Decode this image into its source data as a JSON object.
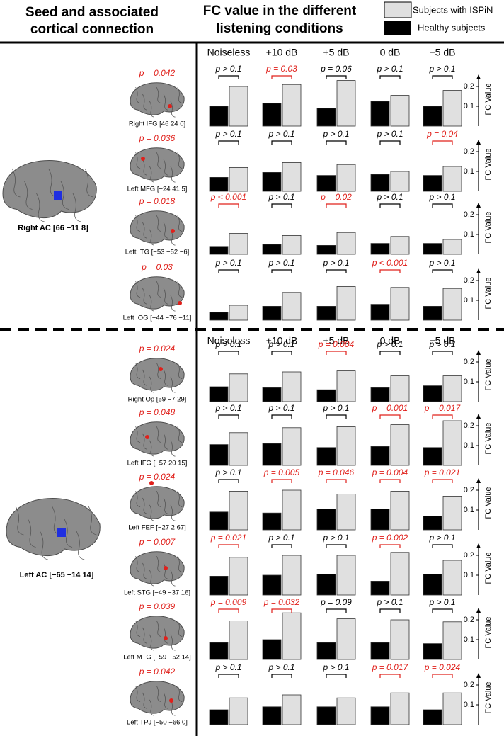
{
  "header": {
    "left_title": [
      "Seed and associated",
      "cortical connection"
    ],
    "right_title": [
      "FC value in the different",
      "listening conditions"
    ]
  },
  "sections": [
    {
      "seed": "Right AC [66 −11  8]",
      "conditions": [
        "Noiseless",
        "+10 dB",
        "+5 dB",
        "0 dB",
        "−5 dB"
      ]
    },
    {
      "seed": "Left AC [−65 −14 14]",
      "conditions": [
        "Noiseless",
        "+10 dB",
        "+5 dB",
        "0 dB",
        "−5 dB"
      ]
    }
  ],
  "significant_color": "#e0201b",
  "chart_data": [
    {
      "type": "bar",
      "region_p": "p = 0.042",
      "region": "Right IFG [46 24 0]",
      "ylabel": "FC Value",
      "ylim": [
        0,
        0.25
      ],
      "yticks": [
        0.1,
        0.2
      ],
      "series": [
        {
          "name": "Healthy subjects",
          "color": "#000000",
          "values": [
            0.1,
            0.115,
            0.09,
            0.125,
            0.1
          ]
        },
        {
          "name": "Subjects with ISPiN",
          "color": "#e0e0e0",
          "values": [
            0.2,
            0.21,
            0.23,
            0.155,
            0.18
          ]
        }
      ],
      "p_labels": [
        "p > 0.1",
        "p = 0.03",
        "p = 0.06",
        "p > 0.1",
        "p > 0.1"
      ],
      "p_significant": [
        false,
        true,
        false,
        false,
        false
      ]
    },
    {
      "type": "bar",
      "region_p": "p = 0.036",
      "region": "Left MFG [−24 41 5]",
      "ylabel": "FC Value",
      "ylim": [
        0,
        0.25
      ],
      "yticks": [
        0.1,
        0.2
      ],
      "series": [
        {
          "name": "Healthy subjects",
          "color": "#000000",
          "values": [
            0.07,
            0.095,
            0.08,
            0.085,
            0.08
          ]
        },
        {
          "name": "Subjects with ISPiN",
          "color": "#e0e0e0",
          "values": [
            0.12,
            0.145,
            0.135,
            0.1,
            0.125
          ]
        }
      ],
      "p_labels": [
        "p > 0.1",
        "p > 0.1",
        "p > 0.1",
        "p > 0.1",
        "p = 0.04"
      ],
      "p_significant": [
        false,
        false,
        false,
        false,
        true
      ]
    },
    {
      "type": "bar",
      "region_p": "p = 0.018",
      "region": "Left ITG [−53 −52 −6]",
      "ylabel": "FC Value",
      "ylim": [
        0,
        0.25
      ],
      "yticks": [
        0.1,
        0.2
      ],
      "series": [
        {
          "name": "Healthy subjects",
          "color": "#000000",
          "values": [
            0.04,
            0.05,
            0.045,
            0.055,
            0.055
          ]
        },
        {
          "name": "Subjects with ISPiN",
          "color": "#e0e0e0",
          "values": [
            0.105,
            0.095,
            0.11,
            0.09,
            0.075
          ]
        }
      ],
      "p_labels": [
        "p < 0.001",
        "p > 0.1",
        "p = 0.02",
        "p > 0.1",
        "p > 0.1"
      ],
      "p_significant": [
        true,
        false,
        true,
        false,
        false
      ]
    },
    {
      "type": "bar",
      "region_p": "p = 0.03",
      "region": "Left IOG [−44 −76 −11]",
      "ylabel": "FC Value",
      "ylim": [
        0,
        0.25
      ],
      "yticks": [
        0.1,
        0.2
      ],
      "series": [
        {
          "name": "Healthy subjects",
          "color": "#000000",
          "values": [
            0.04,
            0.07,
            0.07,
            0.08,
            0.07
          ]
        },
        {
          "name": "Subjects with ISPiN",
          "color": "#e0e0e0",
          "values": [
            0.075,
            0.14,
            0.17,
            0.165,
            0.16
          ]
        }
      ],
      "p_labels": [
        "p > 0.1",
        "p > 0.1",
        "p > 0.1",
        "p < 0.001",
        "p > 0.1"
      ],
      "p_significant": [
        false,
        false,
        false,
        true,
        false
      ]
    },
    {
      "type": "bar",
      "region_p": "p = 0.024",
      "region": "Right Op [59 −7 29]",
      "ylabel": "FC Value",
      "ylim": [
        0,
        0.25
      ],
      "yticks": [
        0.1,
        0.2
      ],
      "series": [
        {
          "name": "Healthy subjects",
          "color": "#000000",
          "values": [
            0.075,
            0.07,
            0.06,
            0.07,
            0.08
          ]
        },
        {
          "name": "Subjects with ISPiN",
          "color": "#e0e0e0",
          "values": [
            0.14,
            0.15,
            0.155,
            0.13,
            0.13
          ]
        }
      ],
      "p_labels": [
        "p > 0.1",
        "p > 0.1",
        "p = 0.004",
        "p > 0.1",
        "p > 0.1"
      ],
      "p_significant": [
        false,
        false,
        true,
        false,
        false
      ]
    },
    {
      "type": "bar",
      "region_p": "p = 0.048",
      "region": "Left IFG [−57 20 15]",
      "ylabel": "FC Value",
      "ylim": [
        0,
        0.25
      ],
      "yticks": [
        0.1,
        0.2
      ],
      "series": [
        {
          "name": "Healthy subjects",
          "color": "#000000",
          "values": [
            0.105,
            0.11,
            0.09,
            0.095,
            0.09
          ]
        },
        {
          "name": "Subjects with ISPiN",
          "color": "#e0e0e0",
          "values": [
            0.165,
            0.19,
            0.195,
            0.205,
            0.225
          ]
        }
      ],
      "p_labels": [
        "p > 0.1",
        "p > 0.1",
        "p > 0.1",
        "p = 0.001",
        "p = 0.017"
      ],
      "p_significant": [
        false,
        false,
        false,
        true,
        true
      ]
    },
    {
      "type": "bar",
      "region_p": "p = 0.024",
      "region": "Left FEF [−27 2 67]",
      "ylabel": "FC Value",
      "ylim": [
        0,
        0.25
      ],
      "yticks": [
        0.1,
        0.2
      ],
      "series": [
        {
          "name": "Healthy subjects",
          "color": "#000000",
          "values": [
            0.09,
            0.085,
            0.105,
            0.105,
            0.07
          ]
        },
        {
          "name": "Subjects with ISPiN",
          "color": "#e0e0e0",
          "values": [
            0.195,
            0.2,
            0.18,
            0.195,
            0.17
          ]
        }
      ],
      "p_labels": [
        "p > 0.1",
        "p = 0.005",
        "p = 0.046",
        "p = 0.004",
        "p = 0.021"
      ],
      "p_significant": [
        false,
        true,
        true,
        true,
        true
      ]
    },
    {
      "type": "bar",
      "region_p": "p = 0.007",
      "region": "Left STG [−49 −37 16]",
      "ylabel": "FC Value",
      "ylim": [
        0,
        0.25
      ],
      "yticks": [
        0.1,
        0.2
      ],
      "series": [
        {
          "name": "Healthy subjects",
          "color": "#000000",
          "values": [
            0.095,
            0.1,
            0.105,
            0.07,
            0.105
          ]
        },
        {
          "name": "Subjects with ISPiN",
          "color": "#e0e0e0",
          "values": [
            0.19,
            0.2,
            0.2,
            0.215,
            0.175
          ]
        }
      ],
      "p_labels": [
        "p = 0.021",
        "p > 0.1",
        "p > 0.1",
        "p = 0.002",
        "p > 0.1"
      ],
      "p_significant": [
        true,
        false,
        false,
        true,
        false
      ]
    },
    {
      "type": "bar",
      "region_p": "p = 0.039",
      "region": "Left MTG [−59 −52 14]",
      "ylabel": "FC Value",
      "ylim": [
        0,
        0.25
      ],
      "yticks": [
        0.1,
        0.2
      ],
      "series": [
        {
          "name": "Healthy subjects",
          "color": "#000000",
          "values": [
            0.085,
            0.1,
            0.085,
            0.085,
            0.08
          ]
        },
        {
          "name": "Subjects with ISPiN",
          "color": "#e0e0e0",
          "values": [
            0.195,
            0.235,
            0.205,
            0.2,
            0.19
          ]
        }
      ],
      "p_labels": [
        "p = 0.009",
        "p = 0.032",
        "p = 0.09",
        "p > 0.1",
        "p > 0.1"
      ],
      "p_significant": [
        true,
        true,
        false,
        false,
        false
      ]
    },
    {
      "type": "bar",
      "region_p": "p = 0.042",
      "region": "Left TPJ [−50 −66 0]",
      "ylabel": "FC Value",
      "ylim": [
        0,
        0.25
      ],
      "yticks": [
        0.1,
        0.2
      ],
      "series": [
        {
          "name": "Healthy subjects",
          "color": "#000000",
          "values": [
            0.075,
            0.09,
            0.09,
            0.09,
            0.075
          ]
        },
        {
          "name": "Subjects with ISPiN",
          "color": "#e0e0e0",
          "values": [
            0.135,
            0.15,
            0.135,
            0.16,
            0.16
          ]
        }
      ],
      "p_labels": [
        "p > 0.1",
        "p > 0.1",
        "p > 0.1",
        "p = 0.017",
        "p = 0.024"
      ],
      "p_significant": [
        false,
        false,
        false,
        true,
        true
      ]
    }
  ]
}
